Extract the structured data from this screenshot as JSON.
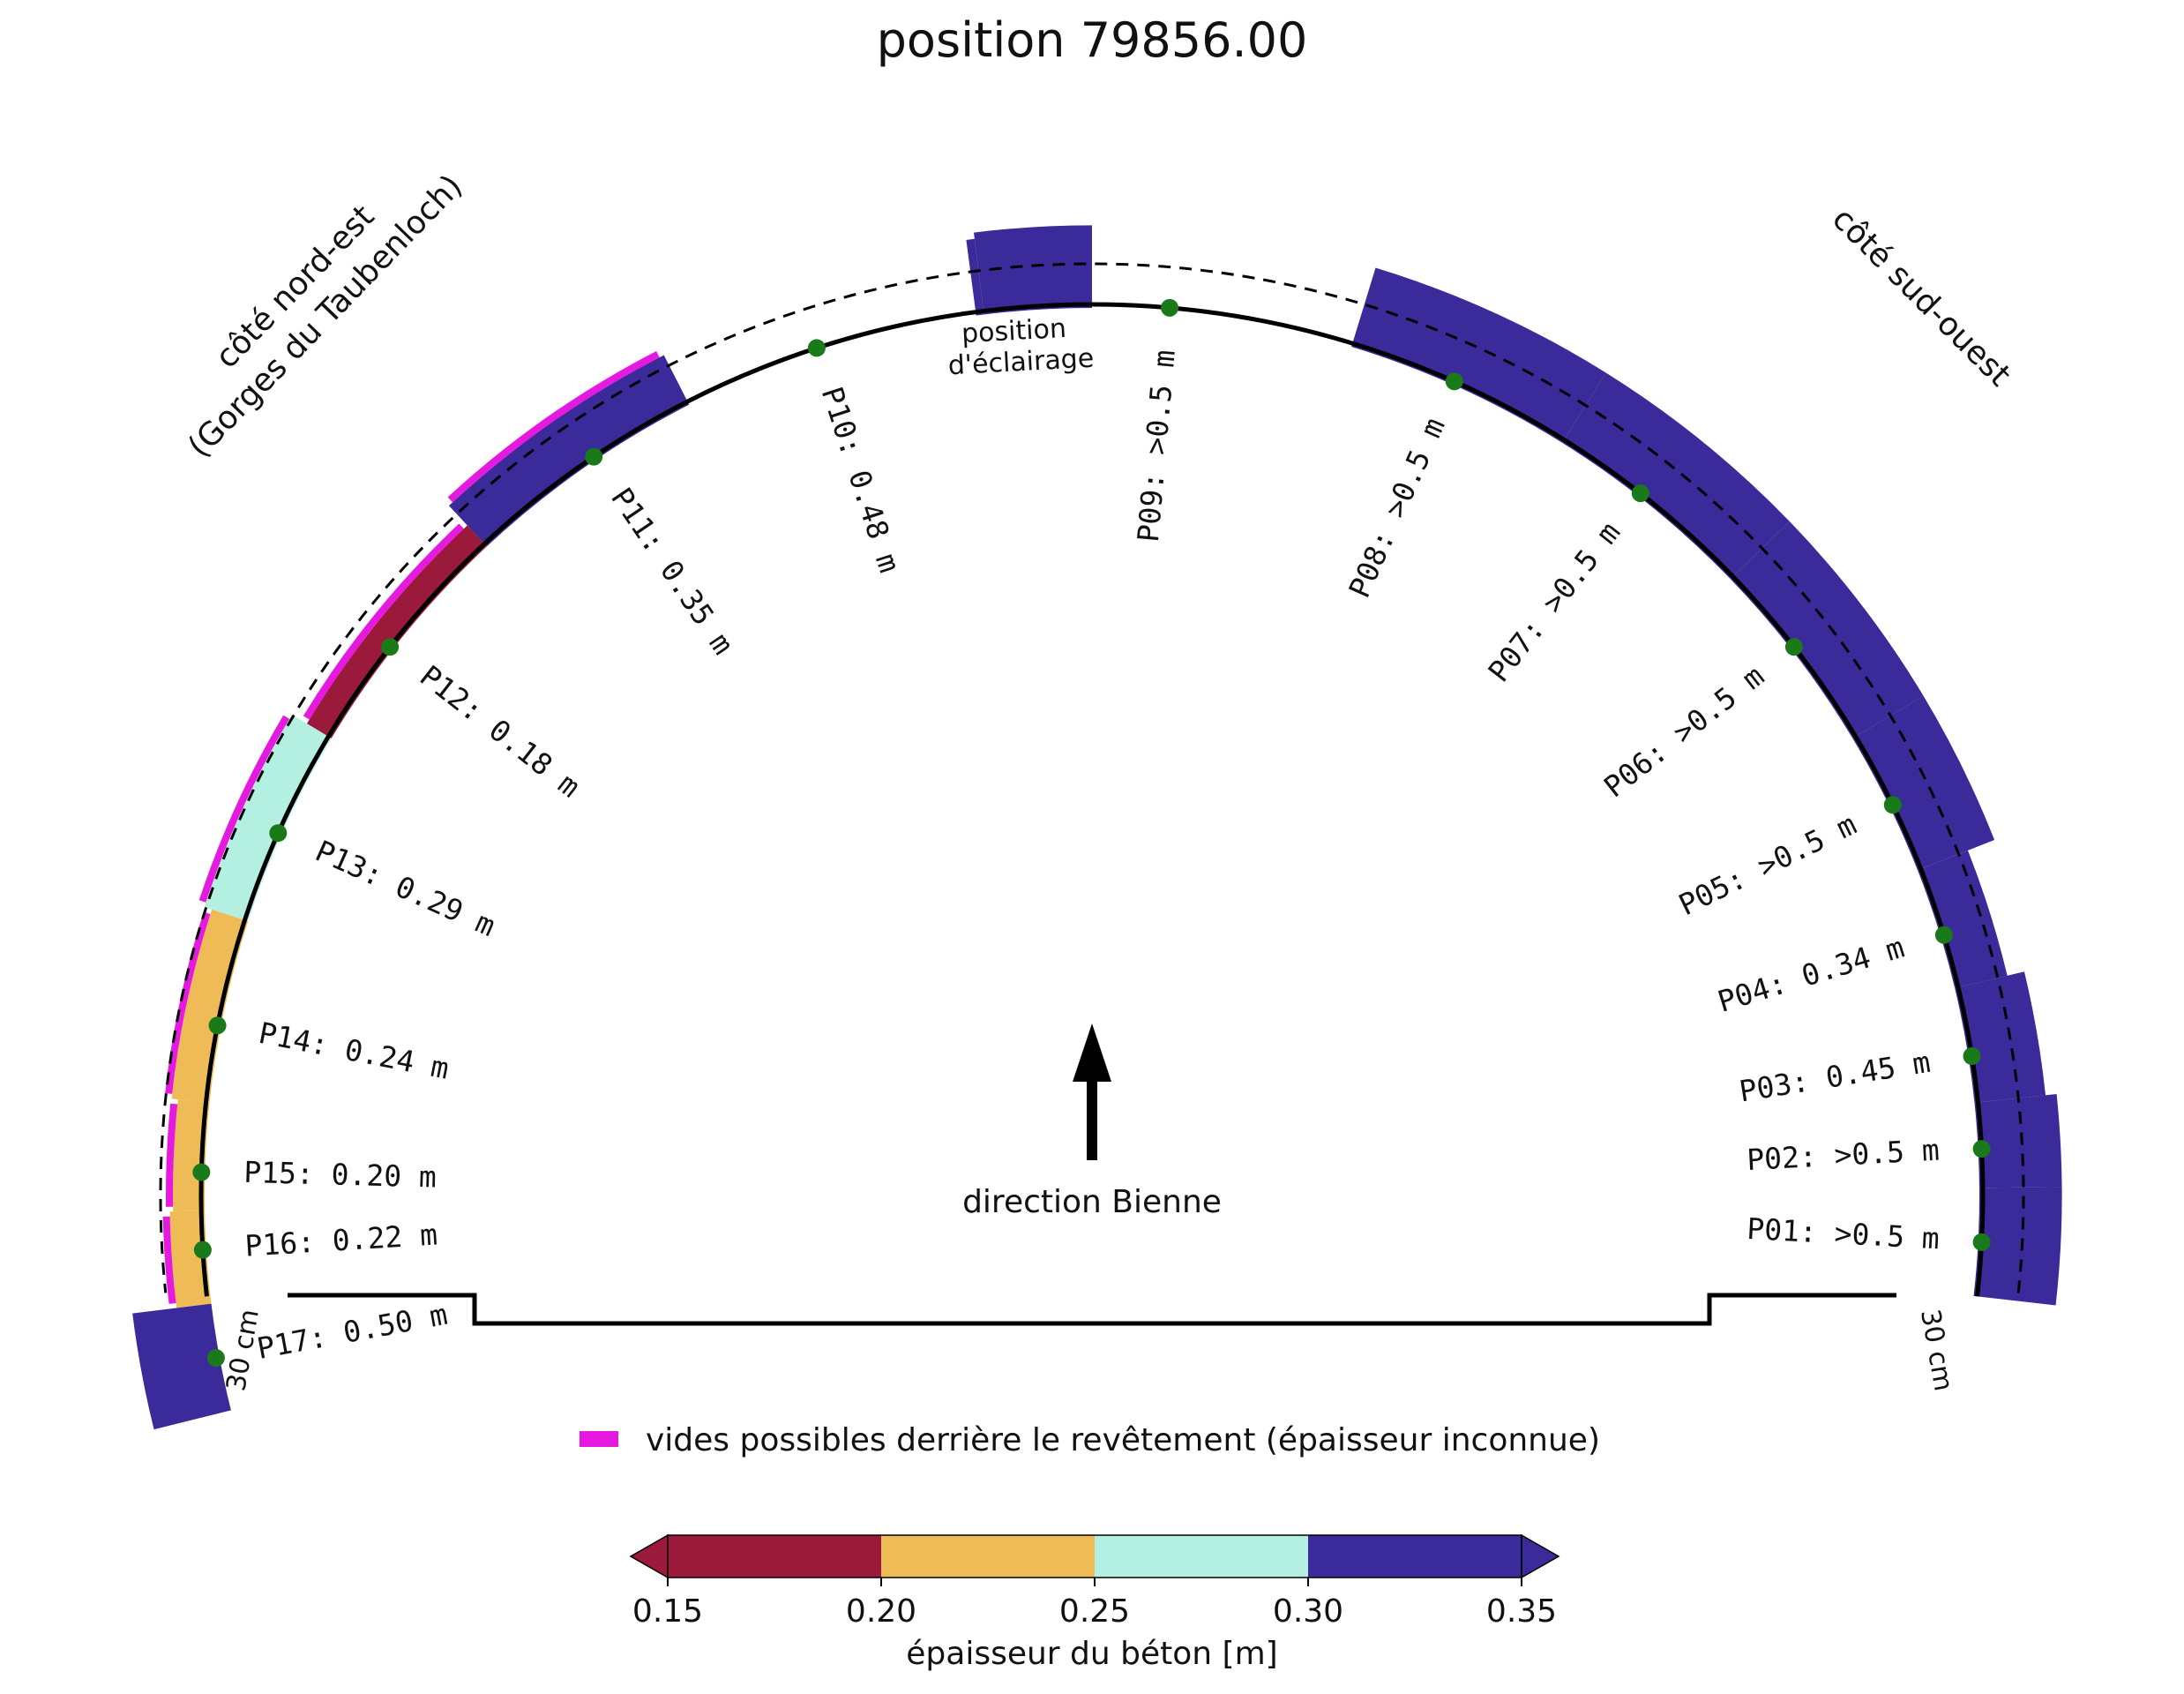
{
  "title": "position 79856.00",
  "side_labels": {
    "northeast_line1": "côté nord-est",
    "northeast_line2": "(Gorges du Taubenloch)",
    "southwest": "côté sud-ouest"
  },
  "lighting_line1": "position",
  "lighting_line2": "d'éclairage",
  "direction_label": "direction Bienne",
  "scale_label": "30 cm",
  "legend_voids": "vides possibles derrière le revêtement (épaisseur inconnue)",
  "colorbar": {
    "label": "épaisseur du béton [m]",
    "ticks": [
      "0.15",
      "0.20",
      "0.25",
      "0.30",
      "0.35"
    ],
    "bins": [
      {
        "from": 0.15,
        "to": 0.2,
        "color": "#9b1a3c"
      },
      {
        "from": 0.2,
        "to": 0.25,
        "color": "#efbb57"
      },
      {
        "from": 0.25,
        "to": 0.3,
        "color": "#b4f0e1"
      },
      {
        "from": 0.3,
        "to": 0.35,
        "color": "#3a2a9a"
      }
    ]
  },
  "colors": {
    "under": "#9b1a3c",
    "over": "#3a2a9a",
    "void": "#e619e0",
    "point": "#1a7a1a"
  },
  "chart_data": {
    "type": "diagram",
    "units": "m",
    "points": [
      {
        "id": "P01",
        "label": "P01: >0.5 m",
        "thickness": ">0.5",
        "void": false
      },
      {
        "id": "P02",
        "label": "P02: >0.5 m",
        "thickness": ">0.5",
        "void": false
      },
      {
        "id": "P03",
        "label": "P03: 0.45 m",
        "thickness": 0.45,
        "void": false
      },
      {
        "id": "P04",
        "label": "P04: 0.34 m",
        "thickness": 0.34,
        "void": false
      },
      {
        "id": "P05",
        "label": "P05: >0.5 m",
        "thickness": ">0.5",
        "void": false
      },
      {
        "id": "P06",
        "label": "P06: >0.5 m",
        "thickness": ">0.5",
        "void": false
      },
      {
        "id": "P07",
        "label": "P07: >0.5 m",
        "thickness": ">0.5",
        "void": false
      },
      {
        "id": "P08",
        "label": "P08: >0.5 m",
        "thickness": ">0.5",
        "void": false
      },
      {
        "id": "P09",
        "label": "P09: >0.5 m",
        "thickness": ">0.5",
        "void": false
      },
      {
        "id": "P10",
        "label": "P10: 0.48 m",
        "thickness": 0.48,
        "void": false
      },
      {
        "id": "P11",
        "label": "P11: 0.35 m",
        "thickness": 0.35,
        "void": true
      },
      {
        "id": "P12",
        "label": "P12: 0.18 m",
        "thickness": 0.18,
        "void": true
      },
      {
        "id": "P13",
        "label": "P13: 0.29 m",
        "thickness": 0.29,
        "void": true
      },
      {
        "id": "P14",
        "label": "P14: 0.24 m",
        "thickness": 0.24,
        "void": true
      },
      {
        "id": "P15",
        "label": "P15: 0.20 m",
        "thickness": 0.2,
        "void": true
      },
      {
        "id": "P16",
        "label": "P16: 0.22 m",
        "thickness": 0.22,
        "void": true
      },
      {
        "id": "P17",
        "label": "P17: 0.50 m",
        "thickness": 0.5,
        "void": false
      }
    ]
  }
}
